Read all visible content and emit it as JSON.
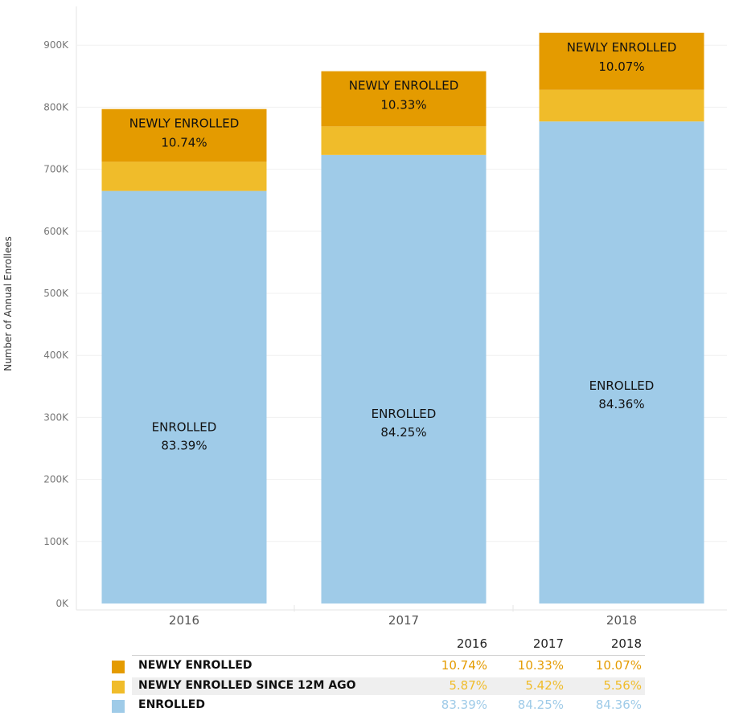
{
  "colors": {
    "newly_enrolled": "#e49b00",
    "newly_enrolled_12m": "#f0bc2a",
    "enrolled": "#9fcbe8"
  },
  "chart_data": {
    "type": "bar",
    "stacked": true,
    "categories": [
      "2016",
      "2017",
      "2018"
    ],
    "ylabel": "Number of Annual Enrollees",
    "ylim": [
      0,
      950000
    ],
    "yticks": [
      0,
      100000,
      200000,
      300000,
      400000,
      500000,
      600000,
      700000,
      800000,
      900000
    ],
    "ytick_labels": [
      "0K",
      "100K",
      "200K",
      "300K",
      "400K",
      "500K",
      "600K",
      "700K",
      "800K",
      "900K"
    ],
    "grid": true,
    "series": [
      {
        "name": "ENROLLED",
        "values": [
          665000,
          723000,
          777000
        ],
        "pct_labels": [
          "83.39%",
          "84.25%",
          "84.36%"
        ],
        "color": "#9fcbe8"
      },
      {
        "name": "NEWLY ENROLLED SINCE 12M AGO",
        "values": [
          47000,
          46000,
          51000
        ],
        "pct_labels": [
          "5.87%",
          "5.42%",
          "5.56%"
        ],
        "color": "#f0bc2a"
      },
      {
        "name": "NEWLY ENROLLED",
        "values": [
          85000,
          89000,
          92000
        ],
        "pct_labels": [
          "10.74%",
          "10.33%",
          "10.07%"
        ],
        "color": "#e49b00"
      }
    ]
  },
  "legend": {
    "years": [
      "2016",
      "2017",
      "2018"
    ],
    "rows": [
      {
        "name": "NEWLY ENROLLED",
        "values": [
          "10.74%",
          "10.33%",
          "10.07%"
        ],
        "color": "#e49b00",
        "text_color": "#e49b00"
      },
      {
        "name": "NEWLY ENROLLED SINCE 12M AGO",
        "values": [
          "5.87%",
          "5.42%",
          "5.56%"
        ],
        "color": "#f0bc2a",
        "text_color": "#f0bc2a"
      },
      {
        "name": "ENROLLED",
        "values": [
          "83.39%",
          "84.25%",
          "84.36%"
        ],
        "color": "#9fcbe8",
        "text_color": "#9fcbe8"
      }
    ]
  }
}
